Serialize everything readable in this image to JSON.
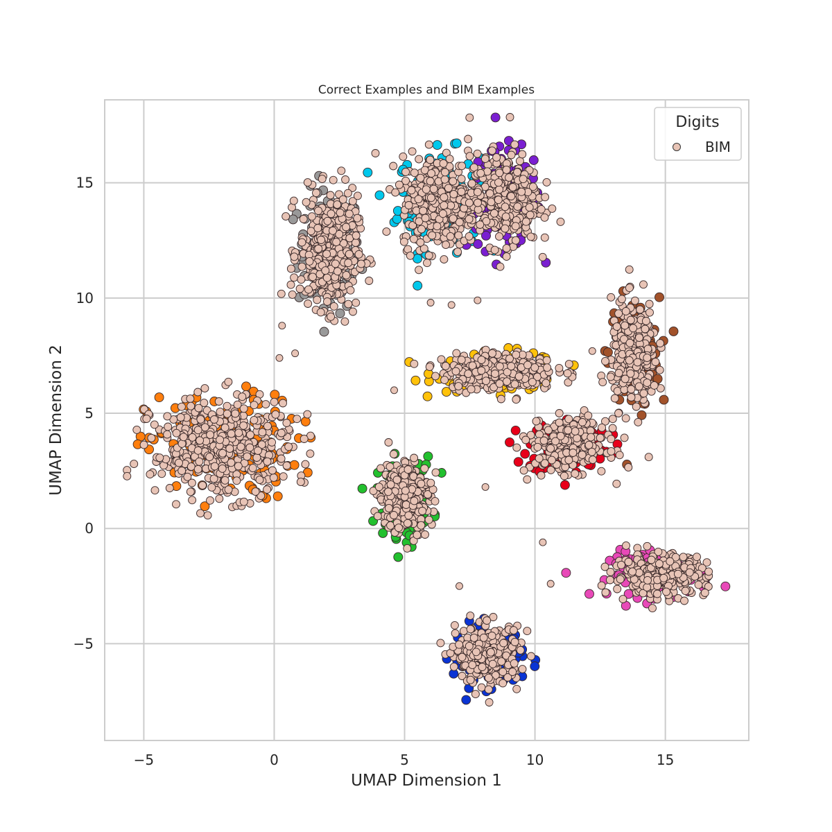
{
  "chart_data": {
    "type": "scatter",
    "title": "Correct Examples and BIM Examples",
    "xlabel": "UMAP Dimension 1",
    "ylabel": "UMAP Dimension 2",
    "xlim": [
      -6.5,
      18.2
    ],
    "ylim": [
      -9.2,
      18.6
    ],
    "xticks": [
      -5,
      0,
      5,
      10,
      15
    ],
    "yticks": [
      -5,
      0,
      5,
      10,
      15
    ],
    "xtick_labels": [
      "−5",
      "0",
      "5",
      "10",
      "15"
    ],
    "ytick_labels": [
      "−5",
      "0",
      "5",
      "10",
      "15"
    ],
    "grid": true,
    "legend": {
      "title": "Digits",
      "placement": "top-right",
      "entries": [
        {
          "label": "BIM",
          "color": "#e8c4b6"
        }
      ]
    },
    "colors": {
      "bim": "#e8c4b6",
      "digit_0": "#0a34d4",
      "digit_1": "#ff7f0e",
      "digit_2": "#22c02e",
      "digit_3": "#e8001a",
      "digit_4": "#8b3a3a",
      "digit_5": "#a2522a",
      "digit_6": "#e849b8",
      "digit_7": "#999999",
      "digit_8": "#ffc20a",
      "digit_9": "#00c8ec",
      "digit_9b": "#7a1fd1",
      "grid": "#cccccc",
      "axes": "#cccccc"
    },
    "clusters": [
      {
        "name": "cluster-upper-left",
        "color": "#999999",
        "center": [
          2.1,
          12.0
        ],
        "spread": [
          1.0,
          2.2
        ],
        "n": 420
      },
      {
        "name": "cluster-top-cyan",
        "color": "#00c8ec",
        "center": [
          6.3,
          14.2
        ],
        "spread": [
          1.3,
          1.8
        ],
        "n": 380
      },
      {
        "name": "cluster-top-purple",
        "color": "#7a1fd1",
        "center": [
          8.8,
          14.3
        ],
        "spread": [
          1.2,
          1.8
        ],
        "n": 360
      },
      {
        "name": "cluster-mid-yellow",
        "color": "#ffc20a",
        "center": [
          8.6,
          6.8
        ],
        "spread": [
          2.0,
          0.7
        ],
        "n": 330
      },
      {
        "name": "cluster-right-brown",
        "color": "#a2522a",
        "center": [
          13.8,
          7.6
        ],
        "spread": [
          0.8,
          2.0
        ],
        "n": 300
      },
      {
        "name": "cluster-mid-red",
        "color": "#e8001a",
        "center": [
          11.3,
          3.6
        ],
        "spread": [
          1.3,
          1.0
        ],
        "n": 300
      },
      {
        "name": "cluster-left-orange",
        "color": "#ff7f0e",
        "center": [
          -2.0,
          3.5
        ],
        "spread": [
          2.4,
          1.9
        ],
        "n": 460
      },
      {
        "name": "cluster-green",
        "color": "#22c02e",
        "center": [
          5.0,
          1.4
        ],
        "spread": [
          0.9,
          1.4
        ],
        "n": 320
      },
      {
        "name": "cluster-pink",
        "color": "#e849b8",
        "center": [
          14.8,
          -2.0
        ],
        "spread": [
          1.6,
          0.8
        ],
        "n": 300
      },
      {
        "name": "cluster-blue",
        "color": "#0a34d4",
        "center": [
          8.2,
          -5.5
        ],
        "spread": [
          1.1,
          1.1
        ],
        "n": 320
      }
    ],
    "outliers": [
      [
        6.0,
        9.8
      ],
      [
        6.8,
        9.7
      ],
      [
        7.8,
        9.9
      ],
      [
        0.3,
        8.8
      ],
      [
        0.8,
        7.6
      ],
      [
        0.2,
        7.4
      ],
      [
        4.6,
        6.0
      ],
      [
        8.1,
        1.8
      ],
      [
        10.3,
        -0.6
      ],
      [
        10.6,
        -2.4
      ],
      [
        7.1,
        -2.5
      ],
      [
        12.2,
        7.7
      ]
    ]
  }
}
